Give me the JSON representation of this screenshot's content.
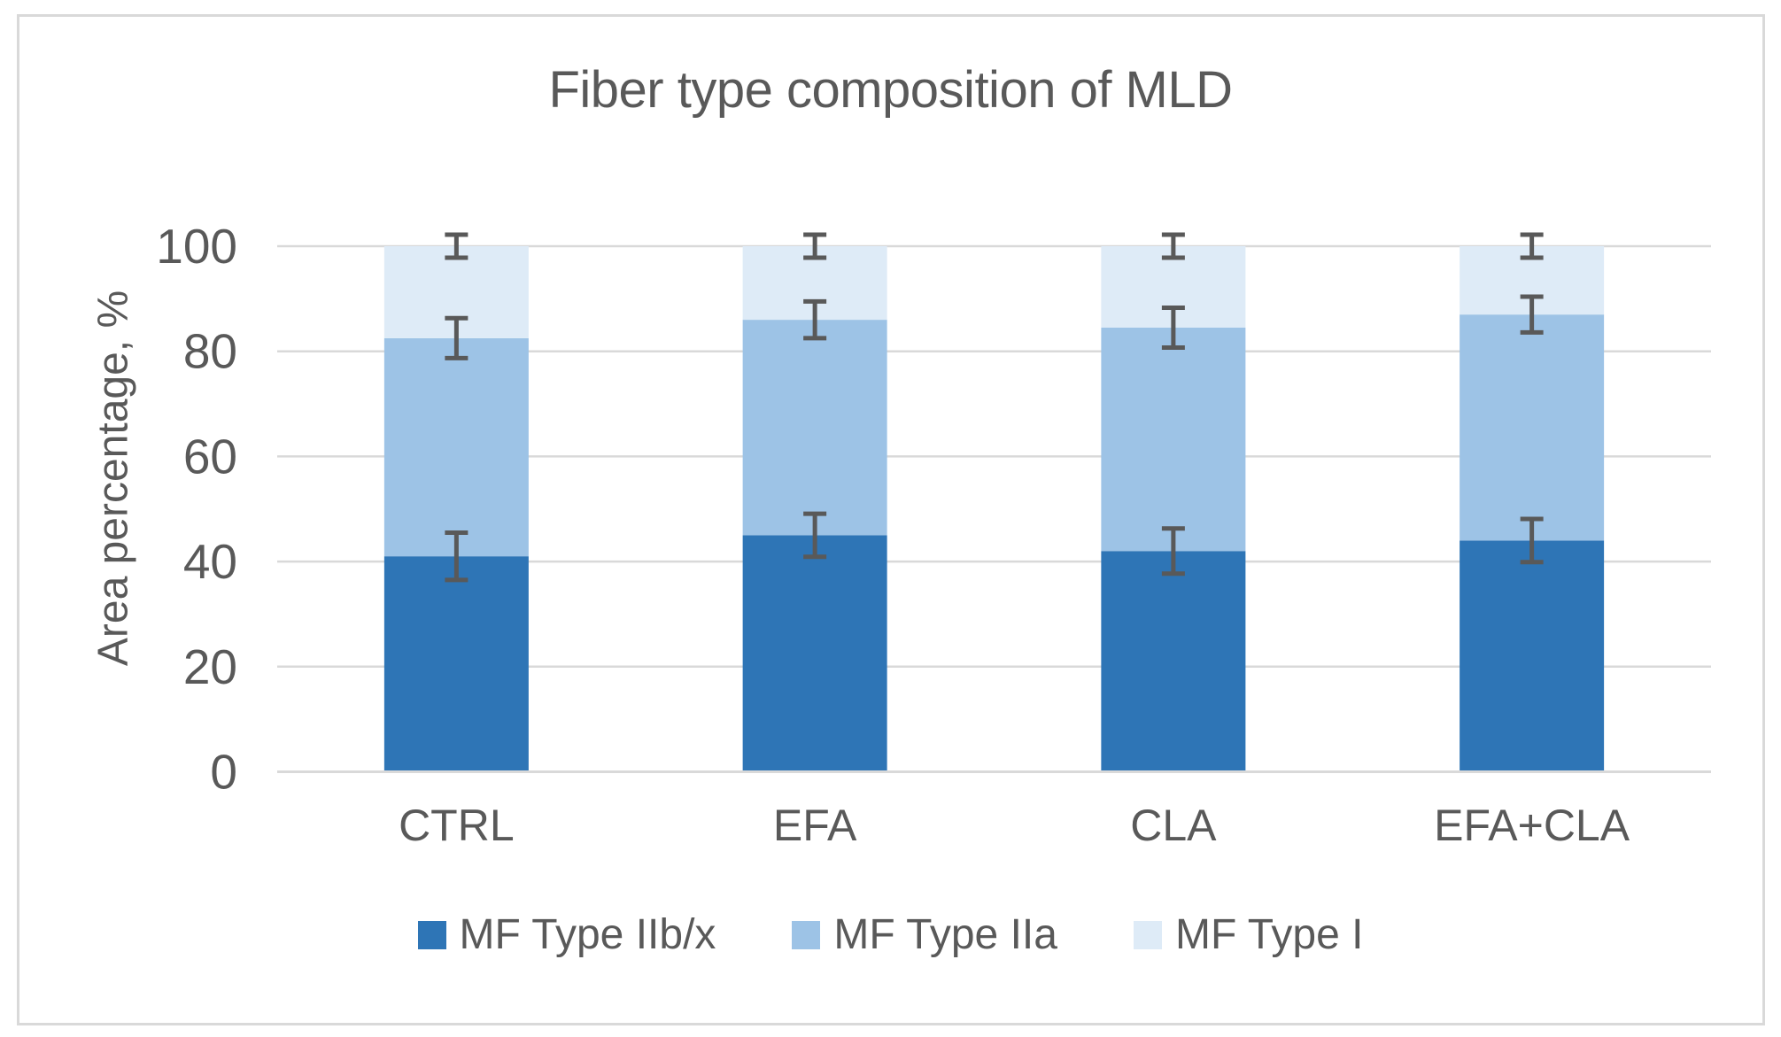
{
  "figure": {
    "background": "#FFFFFF",
    "border_color": "#D9D9D9"
  },
  "chart_data": {
    "type": "bar",
    "stacked": true,
    "title": "Fiber type composition of MLD",
    "xlabel": "",
    "ylabel": "Area percentage, %",
    "categories": [
      "CTRL",
      "EFA",
      "CLA",
      "EFA+CLA"
    ],
    "series": [
      {
        "name": "MF Type IIb/x",
        "color": "#2E75B6",
        "values": [
          41,
          45,
          42,
          44
        ],
        "error_plus_minus": [
          4.5,
          4.1,
          4.3,
          4.1
        ]
      },
      {
        "name": "MF Type IIa",
        "color": "#9DC3E6",
        "values": [
          41.5,
          41,
          42.5,
          43
        ],
        "error_plus_minus": [
          3.8,
          3.5,
          3.8,
          3.4
        ]
      },
      {
        "name": "MF Type I",
        "color": "#DEEBF7",
        "values": [
          17.5,
          14,
          15.5,
          13
        ],
        "error_plus_minus": [
          2.2,
          2.2,
          2.2,
          2.2
        ]
      }
    ],
    "cumulative_tops": {
      "CTRL": [
        41,
        82.5,
        100
      ],
      "EFA": [
        45,
        86,
        100
      ],
      "CLA": [
        42,
        84.5,
        100
      ],
      "EFA+CLA": [
        44,
        87,
        100
      ]
    },
    "ylim": [
      0,
      100
    ],
    "yticks": [
      0,
      20,
      40,
      60,
      80,
      100
    ],
    "grid": true,
    "gridline_color": "#D9D9D9",
    "axis_text_color": "#595959",
    "error_bar_color": "#595959",
    "legend_position": "bottom",
    "legend_entries": [
      "MF Type IIb/x",
      "MF Type IIa",
      "MF Type I"
    ]
  }
}
